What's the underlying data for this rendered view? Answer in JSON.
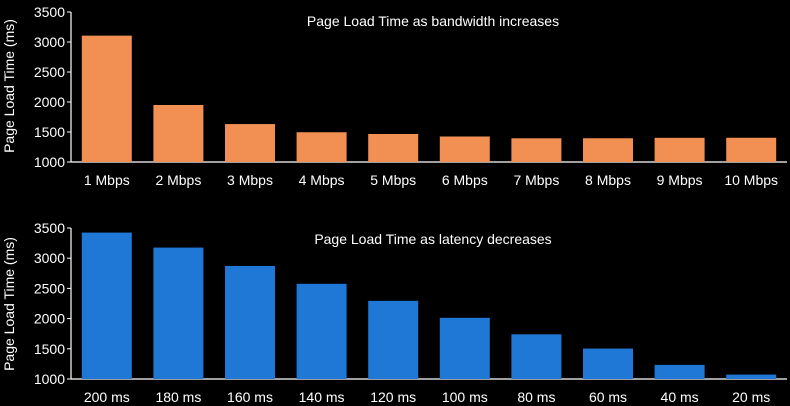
{
  "chart_data": [
    {
      "type": "bar",
      "title": "Page Load Time as bandwidth increases",
      "xlabel": "",
      "ylabel": "Page Load Time (ms)",
      "ylim": [
        1000,
        3500
      ],
      "yticks": [
        1000,
        1500,
        2000,
        2500,
        3000,
        3500
      ],
      "grid": false,
      "bar_color": "#f28f52",
      "categories": [
        "1 Mbps",
        "2 Mbps",
        "3 Mbps",
        "4 Mbps",
        "5 Mbps",
        "6 Mbps",
        "7 Mbps",
        "8 Mbps",
        "9 Mbps",
        "10 Mbps"
      ],
      "values": [
        3106,
        1950,
        1632,
        1496,
        1467,
        1425,
        1395,
        1396,
        1403,
        1404
      ]
    },
    {
      "type": "bar",
      "title": "Page Load Time as latency decreases",
      "xlabel": "",
      "ylabel": "Page Load Time (ms)",
      "ylim": [
        1000,
        3500
      ],
      "yticks": [
        1000,
        1500,
        2000,
        2500,
        3000,
        3500
      ],
      "grid": false,
      "bar_color": "#1f77d6",
      "categories": [
        "200 ms",
        "180 ms",
        "160 ms",
        "140 ms",
        "120 ms",
        "100 ms",
        "80 ms",
        "60 ms",
        "40 ms",
        "20 ms"
      ],
      "values": [
        3424,
        3176,
        2872,
        2576,
        2294,
        2013,
        1740,
        1504,
        1234,
        1073
      ]
    }
  ],
  "colors": {
    "background": "#000000",
    "text": "#ffffff",
    "axis": "#ffffff"
  }
}
